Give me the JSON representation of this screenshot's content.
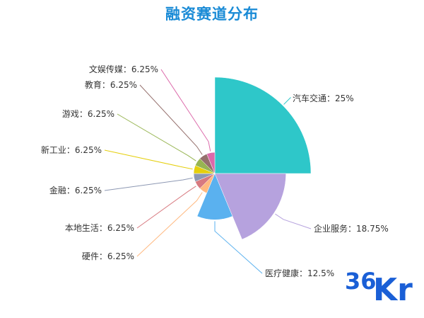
{
  "chart_data": {
    "type": "pie",
    "title": "融资赛道分布",
    "slices": [
      {
        "name": "汽车交通",
        "value": 25,
        "label": "汽车交通：25%",
        "color": "#2ec7c9"
      },
      {
        "name": "企业服务",
        "value": 18.75,
        "label": "企业服务：18.75%",
        "color": "#b6a2de"
      },
      {
        "name": "医疗健康",
        "value": 12.5,
        "label": "医疗健康：12.5%",
        "color": "#5ab1ef"
      },
      {
        "name": "硬件",
        "value": 6.25,
        "label": "硬件：6.25%",
        "color": "#ffb980"
      },
      {
        "name": "本地生活",
        "value": 6.25,
        "label": "本地生活：6.25%",
        "color": "#d87a80"
      },
      {
        "name": "金融",
        "value": 6.25,
        "label": "金融：6.25%",
        "color": "#8d98b3"
      },
      {
        "name": "新工业",
        "value": 6.25,
        "label": "新工业：6.25%",
        "color": "#e5cf0d"
      },
      {
        "name": "游戏",
        "value": 6.25,
        "label": "游戏：6.25%",
        "color": "#97b552"
      },
      {
        "name": "教育",
        "value": 6.25,
        "label": "教育：6.25%",
        "color": "#95706d"
      },
      {
        "name": "文娱传媒",
        "value": 6.25,
        "label": "文娱传媒：6.25%",
        "color": "#dc69aa"
      }
    ],
    "rose_type": "radius"
  },
  "logo": {
    "num": "36",
    "kr": "Kr"
  }
}
